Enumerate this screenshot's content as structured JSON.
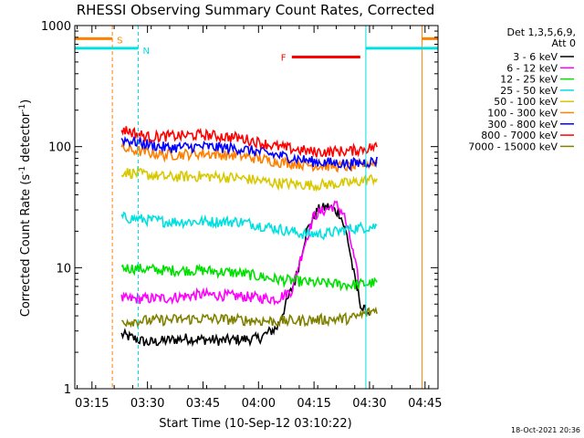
{
  "chart_data": {
    "type": "line",
    "title": "RHESSI Observing Summary Count Rates, Corrected",
    "ylabel_main": "Corrected Count Rate (s",
    "ylabel_sup1": "-1",
    "ylabel_mid": " detector",
    "ylabel_sup2": "-1",
    "ylabel_end": ")",
    "xlabel": "Start Time (10-Sep-12 03:10:22)",
    "footer": "18-Oct-2021 20:36",
    "y_scale": "log",
    "ylim": [
      1,
      1000
    ],
    "xlim": [
      "03:10:22",
      "04:48:30"
    ],
    "y_ticks": [
      {
        "label": "1",
        "value": 1
      },
      {
        "label": "10",
        "value": 10
      },
      {
        "label": "100",
        "value": 100
      },
      {
        "label": "1000",
        "value": 1000
      }
    ],
    "x_ticks": [
      "03:15",
      "03:30",
      "03:45",
      "04:00",
      "04:15",
      "04:30",
      "04:45"
    ],
    "legend": {
      "header1": "Det 1,3,5,6,9,",
      "header2": "Att 0",
      "entries": [
        {
          "label": "3 - 6 keV",
          "color": "#000000"
        },
        {
          "label": "6 - 12 keV",
          "color": "#ff00ff"
        },
        {
          "label": "12 - 25 keV",
          "color": "#00e000"
        },
        {
          "label": "25 - 50 keV",
          "color": "#00e0e0"
        },
        {
          "label": "50 - 100 keV",
          "color": "#d8c800"
        },
        {
          "label": "100 - 300 keV",
          "color": "#ff8000"
        },
        {
          "label": "300 - 800 keV",
          "color": "#0000ff"
        },
        {
          "label": "800 - 7000 keV",
          "color": "#ff0000"
        },
        {
          "label": "7000 - 15000 keV",
          "color": "#808000"
        }
      ]
    },
    "series": [
      {
        "name": "3 - 6 keV",
        "color": "#000000",
        "x": [
          "03:23:00",
          "03:30:00",
          "03:40:00",
          "03:50:00",
          "04:00:00",
          "04:05:00",
          "04:10:00",
          "04:13:00",
          "04:16:00",
          "04:19:00",
          "04:22:00",
          "04:24:00",
          "04:26:00",
          "04:28:00",
          "04:30:00"
        ],
        "y": [
          2.8,
          2.4,
          2.6,
          2.5,
          2.6,
          3.2,
          8,
          20,
          30,
          32,
          28,
          18,
          8,
          4.5,
          4.3
        ]
      },
      {
        "name": "6 - 12 keV",
        "color": "#ff00ff",
        "x": [
          "03:23:00",
          "03:35:00",
          "03:45:00",
          "03:55:00",
          "04:05:00",
          "04:09:00",
          "04:12:00",
          "04:15:00",
          "04:18:00",
          "04:21:00",
          "04:23:00",
          "04:25:00",
          "04:27:00"
        ],
        "y": [
          5.5,
          5.6,
          6.0,
          5.8,
          5.5,
          6.5,
          14,
          27,
          30,
          33,
          28,
          16,
          8
        ]
      },
      {
        "name": "12 - 25 keV",
        "color": "#00e000",
        "x": [
          "03:23:00",
          "03:35:00",
          "03:45:00",
          "03:55:00",
          "04:05:00",
          "04:15:00",
          "04:25:00",
          "04:32:00"
        ],
        "y": [
          10,
          9.5,
          9.5,
          9.0,
          8.0,
          7.5,
          7.2,
          7.5
        ]
      },
      {
        "name": "25 - 50 keV",
        "color": "#00e0e0",
        "x": [
          "03:23:00",
          "03:35:00",
          "03:45:00",
          "03:55:00",
          "04:05:00",
          "04:12:00",
          "04:18:00",
          "04:25:00",
          "04:32:00"
        ],
        "y": [
          26,
          24,
          24,
          24,
          21,
          19,
          19,
          21,
          22
        ]
      },
      {
        "name": "50 - 100 keV",
        "color": "#d8c800",
        "x": [
          "03:23:00",
          "03:35:00",
          "03:45:00",
          "03:55:00",
          "04:05:00",
          "04:15:00",
          "04:25:00",
          "04:32:00"
        ],
        "y": [
          62,
          56,
          57,
          55,
          50,
          48,
          50,
          55
        ]
      },
      {
        "name": "100 - 300 keV",
        "color": "#ff8000",
        "x": [
          "03:23:00",
          "03:35:00",
          "03:45:00",
          "03:55:00",
          "04:05:00",
          "04:15:00",
          "04:25:00",
          "04:32:00"
        ],
        "y": [
          96,
          85,
          88,
          84,
          75,
          70,
          68,
          75
        ]
      },
      {
        "name": "300 - 800 keV",
        "color": "#0000ff",
        "x": [
          "03:23:00",
          "03:35:00",
          "03:45:00",
          "03:55:00",
          "04:05:00",
          "04:15:00",
          "04:25:00",
          "04:32:00"
        ],
        "y": [
          115,
          98,
          100,
          96,
          85,
          75,
          72,
          76
        ]
      },
      {
        "name": "800 - 7000 keV",
        "color": "#ff0000",
        "x": [
          "03:23:00",
          "03:30:00",
          "03:45:00",
          "03:55:00",
          "04:05:00",
          "04:15:00",
          "04:25:00",
          "04:32:00"
        ],
        "y": [
          140,
          120,
          125,
          118,
          100,
          90,
          92,
          100
        ]
      },
      {
        "name": "7000 - 15000 keV",
        "color": "#808000",
        "x": [
          "03:23:00",
          "03:35:00",
          "03:45:00",
          "03:55:00",
          "04:05:00",
          "04:15:00",
          "04:25:00",
          "04:32:00"
        ],
        "y": [
          3.6,
          3.7,
          3.8,
          3.7,
          3.6,
          3.7,
          3.8,
          4.5
        ]
      }
    ],
    "markers": [
      {
        "label": "S",
        "color": "#ff8000",
        "time": "03:20:30",
        "bar_from": "03:10:22",
        "bar_to": "03:20:30",
        "bar_level": 780,
        "end_time": "04:44:10"
      },
      {
        "label": "N",
        "color": "#00e0e0",
        "time": "03:27:30",
        "bar_from": "03:10:22",
        "bar_to": "03:27:30",
        "bar_level": 650,
        "end_time": "04:29:00",
        "end_bar_to": "04:48:30"
      }
    ],
    "flare_bar": {
      "label": "F",
      "color": "#ff0000",
      "from": "04:09:00",
      "to": "04:27:30",
      "level": 550
    }
  }
}
